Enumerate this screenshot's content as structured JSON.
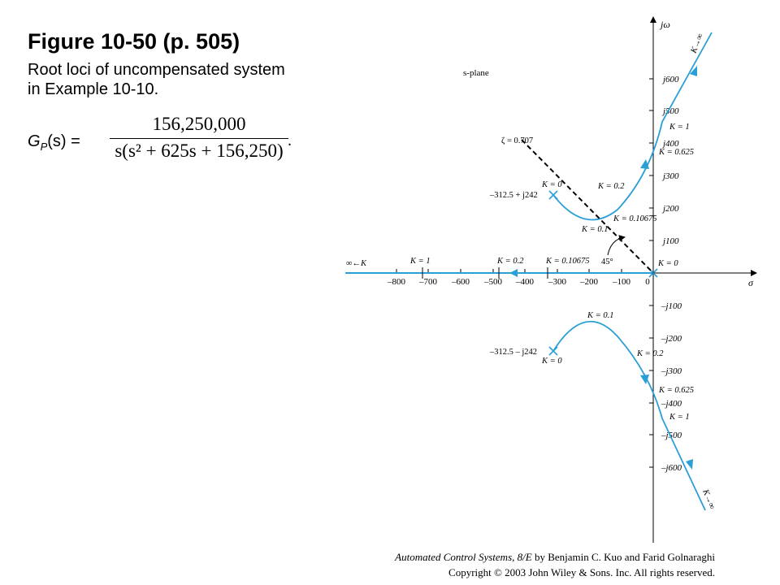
{
  "slide": {
    "title": "Figure 10-50  (p. 505)",
    "subtitle": "Root loci of uncompensated system in Example 10-10.",
    "gp_label_prefix": "G",
    "gp_label_sub": "P",
    "gp_label_arg": "(s) =",
    "fraction_numerator": "156,250,000",
    "fraction_denominator": "s(s² + 625s + 156,250)",
    "fraction_period": "."
  },
  "plot": {
    "axis_labels": {
      "imag": "jω",
      "real": "σ",
      "plane": "s-plane"
    },
    "real_ticks": [
      "–800",
      "–700",
      "–600",
      "–500",
      "–400",
      "–300",
      "–200",
      "–100",
      "0"
    ],
    "imag_ticks_pos": [
      "j100",
      "j200",
      "j300",
      "j400",
      "j500",
      "j600"
    ],
    "imag_ticks_neg": [
      "–j100",
      "–j200",
      "–j300",
      "–j400",
      "–j500",
      "–j600"
    ],
    "annotations": {
      "zeta": "ζ = 0.707",
      "angle": "45°",
      "k0_top": "K = 0",
      "pole_top": "–312.5 + j242",
      "pole_bottom": "–312.5 – j242",
      "k0_bottom": "K = 0",
      "k02_top": "K = 0.2",
      "k01_top": "K = 0.1",
      "k010675_top": "K = 0.10675",
      "k1_top": "K = 1",
      "k0625_top": "K = 0.625",
      "kinf_top": "K→∞",
      "k0_origin": "K = 0",
      "inf_left": "∞←K",
      "k1_real": "K = 1",
      "k02_real": "K = 0.2",
      "k010675_real": "K = 0.10675",
      "k01_bottom": "K = 0.1",
      "k02_bottom": "K = 0.2",
      "k0625_bottom": "K = 0.625",
      "k1_bottom": "K = 1",
      "kinf_bottom": "K→∞"
    },
    "colors": {
      "locus": "#2a9fd6",
      "axis": "#000000"
    }
  },
  "footer": {
    "book": "Automated Control Systems, 8/E",
    "authors": " by Benjamin C. Kuo and Farid Golnaraghi",
    "copyright": "Copyright © 2003 John Wiley & Sons. Inc. All rights reserved."
  }
}
